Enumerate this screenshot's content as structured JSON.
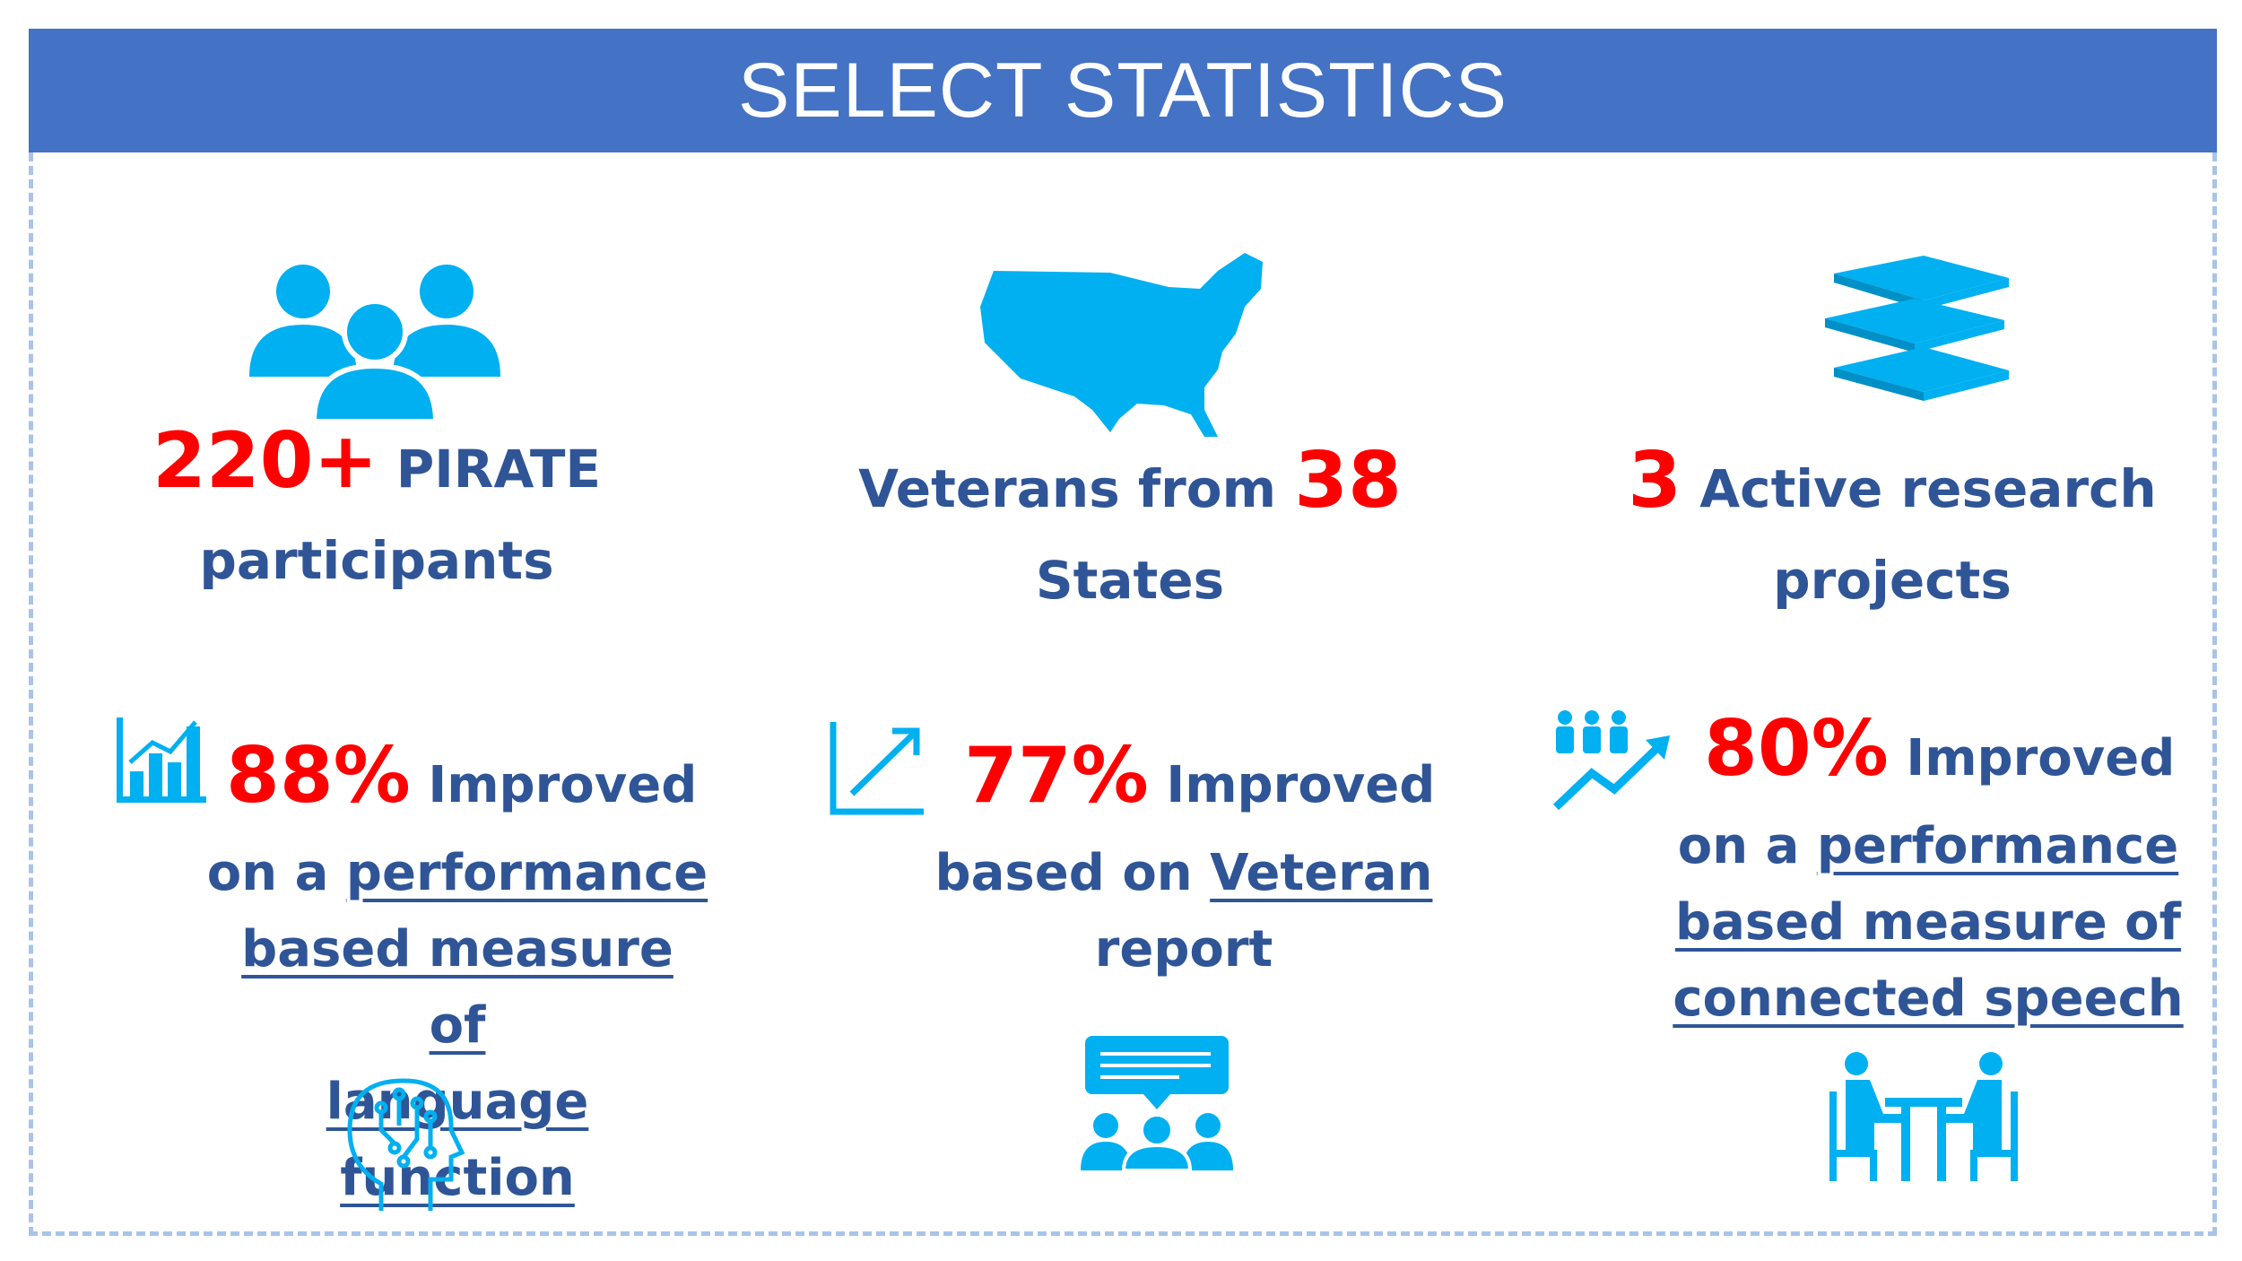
{
  "title": "SELECT STATISTICS",
  "colors": {
    "banner": "#4472c4",
    "icon": "#00b0f0",
    "number": "#ff0000",
    "text": "#2f5597",
    "border": "#a9c4e8"
  },
  "stats": [
    {
      "icon": "people-icon",
      "number": "220+",
      "pre": "",
      "post": "PIRATE",
      "line2": "participants"
    },
    {
      "icon": "usa-map-icon",
      "pre": "Veterans from",
      "number": "38",
      "line2": "States"
    },
    {
      "icon": "books-icon",
      "number": "3",
      "post": "Active research",
      "line2": "projects"
    }
  ],
  "improvements": [
    {
      "icon": "bar-chart-icon",
      "number": "88%",
      "post": "Improved",
      "l2a": "on a",
      "l2b": "performance",
      "l3": "based measure of",
      "l4": "language function",
      "bottom_icon": "brain-circuit-icon"
    },
    {
      "icon": "trend-arrow-icon",
      "number": "77%",
      "post": "Improved",
      "l2a": "based on",
      "l2b": "Veteran",
      "l3": "report",
      "bottom_icon": "group-chat-icon"
    },
    {
      "icon": "people-growth-icon",
      "number": "80%",
      "post": "Improved",
      "l2a": "on a",
      "l2b": "performance",
      "l3": "based measure of",
      "l4": "connected speech",
      "bottom_icon": "meeting-table-icon"
    }
  ]
}
